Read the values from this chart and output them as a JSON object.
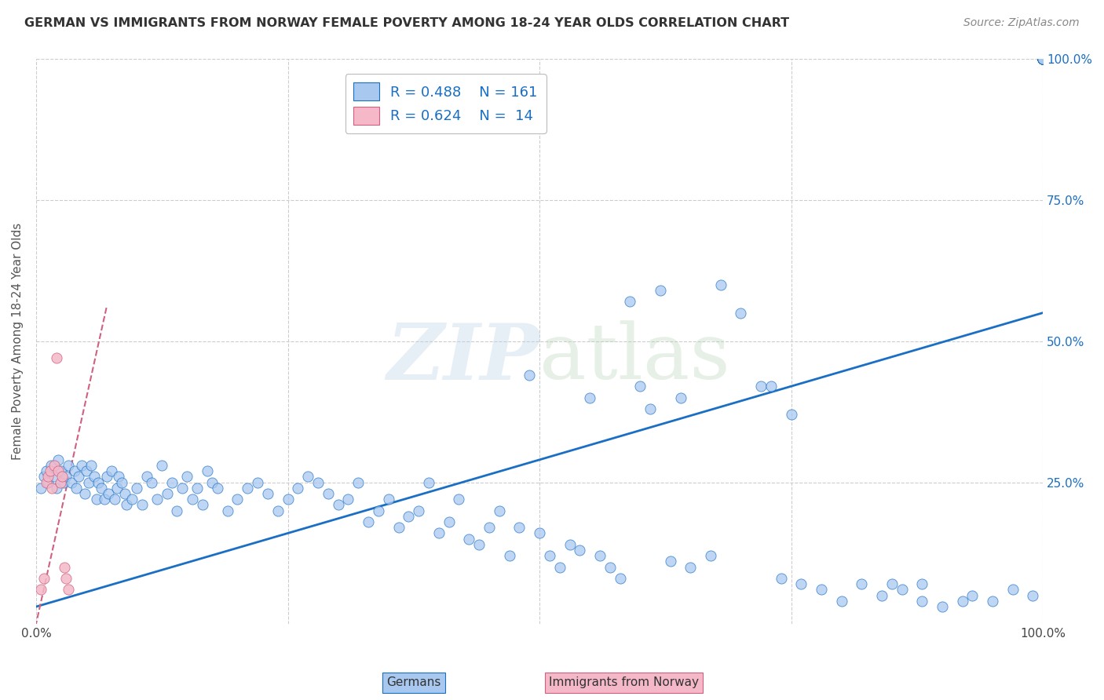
{
  "title": "GERMAN VS IMMIGRANTS FROM NORWAY FEMALE POVERTY AMONG 18-24 YEAR OLDS CORRELATION CHART",
  "source": "Source: ZipAtlas.com",
  "ylabel": "Female Poverty Among 18-24 Year Olds",
  "xlim": [
    0,
    1.0
  ],
  "ylim": [
    0,
    1.0
  ],
  "blue_R": 0.488,
  "blue_N": 161,
  "pink_R": 0.624,
  "pink_N": 14,
  "blue_color": "#a8c8f0",
  "pink_color": "#f4b8c8",
  "blue_line_color": "#1a6fc4",
  "pink_line_color": "#d06080",
  "grid_color": "#cccccc",
  "background_color": "#ffffff",
  "legend_label_blue": "Germans",
  "legend_label_pink": "Immigrants from Norway",
  "blue_scatter_x": [
    0.005,
    0.008,
    0.01,
    0.012,
    0.015,
    0.018,
    0.02,
    0.022,
    0.025,
    0.027,
    0.03,
    0.032,
    0.035,
    0.038,
    0.04,
    0.042,
    0.045,
    0.048,
    0.05,
    0.052,
    0.055,
    0.058,
    0.06,
    0.062,
    0.065,
    0.068,
    0.07,
    0.072,
    0.075,
    0.078,
    0.08,
    0.082,
    0.085,
    0.088,
    0.09,
    0.095,
    0.1,
    0.105,
    0.11,
    0.115,
    0.12,
    0.125,
    0.13,
    0.135,
    0.14,
    0.145,
    0.15,
    0.155,
    0.16,
    0.165,
    0.17,
    0.175,
    0.18,
    0.19,
    0.2,
    0.21,
    0.22,
    0.23,
    0.24,
    0.25,
    0.26,
    0.27,
    0.28,
    0.29,
    0.3,
    0.31,
    0.32,
    0.33,
    0.34,
    0.35,
    0.36,
    0.37,
    0.38,
    0.39,
    0.4,
    0.41,
    0.42,
    0.43,
    0.44,
    0.45,
    0.46,
    0.47,
    0.48,
    0.49,
    0.5,
    0.51,
    0.52,
    0.53,
    0.54,
    0.55,
    0.56,
    0.57,
    0.58,
    0.59,
    0.6,
    0.61,
    0.62,
    0.63,
    0.64,
    0.65,
    0.67,
    0.68,
    0.7,
    0.72,
    0.74,
    0.76,
    0.78,
    0.8,
    0.85,
    0.88,
    1.0,
    1.0,
    1.0,
    1.0,
    1.0,
    1.0,
    1.0,
    1.0,
    1.0,
    1.0,
    1.0,
    1.0,
    1.0,
    1.0,
    1.0,
    1.0,
    1.0,
    1.0,
    1.0,
    1.0,
    1.0,
    1.0,
    1.0,
    1.0,
    1.0,
    1.0,
    1.0,
    1.0,
    1.0,
    1.0,
    1.0,
    1.0,
    1.0,
    1.0,
    1.0,
    1.0,
    1.0,
    1.0,
    1.0,
    1.0,
    0.9,
    0.93,
    0.95,
    0.97,
    0.99,
    0.88,
    0.92,
    0.86,
    0.84,
    0.82,
    0.75,
    0.73
  ],
  "blue_scatter_y": [
    0.24,
    0.26,
    0.27,
    0.25,
    0.28,
    0.26,
    0.24,
    0.29,
    0.27,
    0.25,
    0.26,
    0.28,
    0.25,
    0.27,
    0.24,
    0.26,
    0.28,
    0.23,
    0.27,
    0.25,
    0.28,
    0.26,
    0.22,
    0.25,
    0.24,
    0.22,
    0.26,
    0.23,
    0.27,
    0.22,
    0.24,
    0.26,
    0.25,
    0.23,
    0.21,
    0.22,
    0.24,
    0.21,
    0.26,
    0.25,
    0.22,
    0.28,
    0.23,
    0.25,
    0.2,
    0.24,
    0.26,
    0.22,
    0.24,
    0.21,
    0.27,
    0.25,
    0.24,
    0.2,
    0.22,
    0.24,
    0.25,
    0.23,
    0.2,
    0.22,
    0.24,
    0.26,
    0.25,
    0.23,
    0.21,
    0.22,
    0.25,
    0.18,
    0.2,
    0.22,
    0.17,
    0.19,
    0.2,
    0.25,
    0.16,
    0.18,
    0.22,
    0.15,
    0.14,
    0.17,
    0.2,
    0.12,
    0.17,
    0.44,
    0.16,
    0.12,
    0.1,
    0.14,
    0.13,
    0.4,
    0.12,
    0.1,
    0.08,
    0.57,
    0.42,
    0.38,
    0.59,
    0.11,
    0.4,
    0.1,
    0.12,
    0.6,
    0.55,
    0.42,
    0.08,
    0.07,
    0.06,
    0.04,
    0.07,
    0.04,
    1.0,
    1.0,
    1.0,
    1.0,
    1.0,
    1.0,
    1.0,
    1.0,
    1.0,
    1.0,
    1.0,
    1.0,
    1.0,
    1.0,
    1.0,
    1.0,
    1.0,
    1.0,
    1.0,
    1.0,
    1.0,
    1.0,
    1.0,
    1.0,
    1.0,
    1.0,
    1.0,
    1.0,
    1.0,
    1.0,
    1.0,
    1.0,
    1.0,
    1.0,
    1.0,
    1.0,
    1.0,
    1.0,
    1.0,
    1.0,
    0.03,
    0.05,
    0.04,
    0.06,
    0.05,
    0.07,
    0.04,
    0.06,
    0.05,
    0.07,
    0.37,
    0.42
  ],
  "pink_scatter_x": [
    0.005,
    0.008,
    0.01,
    0.012,
    0.014,
    0.016,
    0.018,
    0.02,
    0.022,
    0.024,
    0.026,
    0.028,
    0.03,
    0.032
  ],
  "pink_scatter_y": [
    0.06,
    0.08,
    0.25,
    0.26,
    0.27,
    0.24,
    0.28,
    0.47,
    0.27,
    0.25,
    0.26,
    0.1,
    0.08,
    0.06
  ],
  "blue_line": [
    [
      0.0,
      0.03
    ],
    [
      1.0,
      0.55
    ]
  ],
  "pink_line": [
    [
      -0.01,
      -0.08
    ],
    [
      0.07,
      0.56
    ]
  ],
  "ytick_right": [
    0.25,
    0.5,
    0.75,
    1.0
  ],
  "ytick_right_labels": [
    "25.0%",
    "50.0%",
    "75.0%",
    "100.0%"
  ]
}
